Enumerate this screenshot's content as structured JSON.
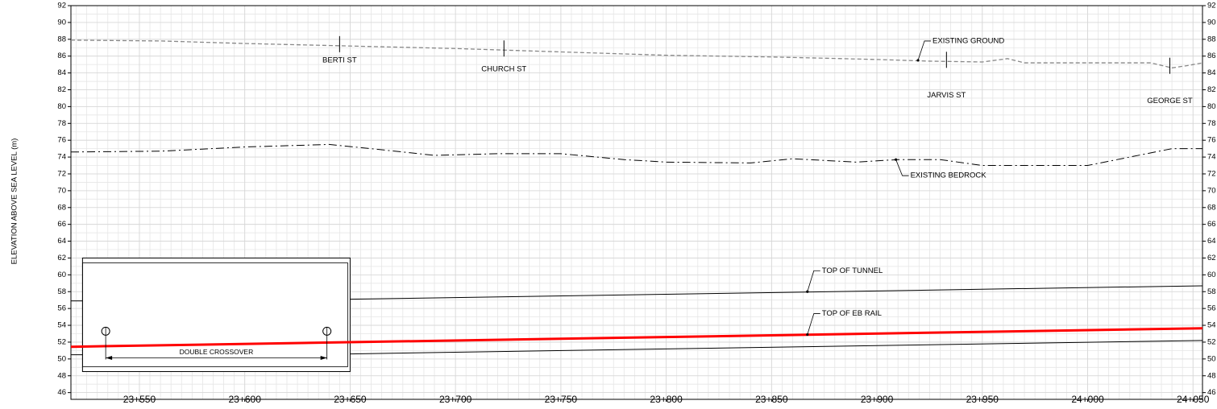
{
  "chart_data": {
    "type": "line",
    "y_label": "ELEVATION ABOVE SEA LEVEL (m)",
    "xlim": [
      23517.5,
      24054.5
    ],
    "ylim": [
      45.2,
      92
    ],
    "xticks": [
      {
        "value": 23550,
        "label": "23+550"
      },
      {
        "value": 23600,
        "label": "23+600"
      },
      {
        "value": 23650,
        "label": "23+650"
      },
      {
        "value": 23700,
        "label": "23+700"
      },
      {
        "value": 23750,
        "label": "23+750"
      },
      {
        "value": 23800,
        "label": "23+800"
      },
      {
        "value": 23850,
        "label": "23+850"
      },
      {
        "value": 23900,
        "label": "23+900"
      },
      {
        "value": 23950,
        "label": "23+950"
      },
      {
        "value": 24000,
        "label": "24+000"
      },
      {
        "value": 24050,
        "label": "24+050"
      }
    ],
    "yticks": [
      46,
      48,
      50,
      52,
      54,
      56,
      58,
      60,
      62,
      64,
      66,
      68,
      70,
      72,
      74,
      76,
      78,
      80,
      82,
      84,
      86,
      88,
      90,
      92
    ],
    "grid": true,
    "minor_grid": {
      "x": 5,
      "y": 1
    },
    "series": [
      {
        "color": "#888888",
        "style": "dashed",
        "x": [
          23517.5,
          23560,
          23600,
          23650,
          23700,
          23750,
          23800,
          23850,
          23900,
          23925,
          23950,
          23962,
          23970,
          24000,
          24030,
          24040,
          24048,
          24054.5
        ],
        "values": [
          87.9,
          87.8,
          87.5,
          87.2,
          86.9,
          86.5,
          86.1,
          85.9,
          85.6,
          85.4,
          85.3,
          85.7,
          85.2,
          85.2,
          85.2,
          84.6,
          84.9,
          85.2
        ]
      },
      {
        "color": "#000000",
        "style": "dashdot",
        "x": [
          23517.5,
          23560,
          23600,
          23640,
          23660,
          23690,
          23720,
          23750,
          23780,
          23800,
          23840,
          23860,
          23890,
          23910,
          23930,
          23950,
          24000,
          24040,
          24054.5
        ],
        "values": [
          74.6,
          74.7,
          75.2,
          75.5,
          75.0,
          74.2,
          74.4,
          74.4,
          73.7,
          73.4,
          73.3,
          73.8,
          73.4,
          73.7,
          73.7,
          73.0,
          73.0,
          75.0,
          75.0
        ]
      },
      {
        "color": "#000000",
        "style": "solid",
        "x": [
          23517.5,
          23523,
          23586,
          23650,
          24054.5
        ],
        "values": [
          56.9,
          56.9,
          null,
          57.1,
          58.7
        ]
      },
      {
        "color": "#000000",
        "style": "solid",
        "x": [
          23517.5,
          23523,
          23586,
          23650,
          24054.5
        ],
        "values": [
          50.5,
          50.5,
          null,
          50.6,
          52.2
        ]
      },
      {
        "color": "#ff0000",
        "style": "thick",
        "x": [
          23517.5,
          24054.5
        ],
        "values": [
          51.45,
          53.65
        ]
      }
    ],
    "annotations": [
      {
        "text": "EXISTING GROUND",
        "x": 23919.5,
        "y": 85.5
      },
      {
        "text": "EXISTING BEDROCK",
        "x": 23909,
        "y": 73.7
      },
      {
        "text": "TOP OF TUNNEL",
        "x": 23867,
        "y": 58.0
      },
      {
        "text": "TOP OF EB RAIL",
        "x": 23867,
        "y": 52.9
      }
    ],
    "streets": [
      {
        "name": "BERTI ST",
        "x": 23645
      },
      {
        "name": "CHURCH ST",
        "x": 23723
      },
      {
        "name": "JARVIS ST",
        "x": 23933
      },
      {
        "name": "GEORGE ST",
        "x": 24039
      }
    ],
    "structure": {
      "label": "DOUBLE CROSSOVER",
      "x": [
        23523,
        23650
      ],
      "y": [
        48.5,
        62.0
      ],
      "dimension_x": [
        23534,
        23639
      ],
      "marker_y": 53.3
    }
  }
}
